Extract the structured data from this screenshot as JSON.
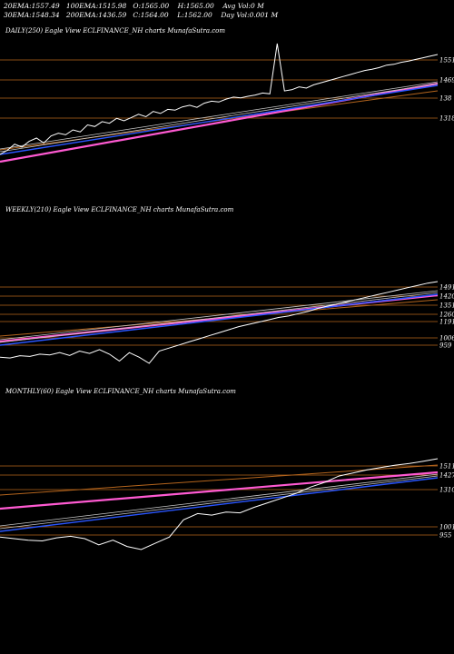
{
  "header": {
    "row1": [
      {
        "label": "20EMA:",
        "value": "1557.49"
      },
      {
        "label": "100EMA:",
        "value": "1515.98"
      },
      {
        "label": "O:",
        "value": "1565.00"
      },
      {
        "label": "H:",
        "value": "1565.00"
      },
      {
        "label": "Avg Vol:",
        "value": "0  M"
      }
    ],
    "row2": [
      {
        "label": "30EMA:",
        "value": "1548.34"
      },
      {
        "label": "200EMA:",
        "value": "1436.59"
      },
      {
        "label": "C:",
        "value": "1564.00"
      },
      {
        "label": "L:",
        "value": "1562.00"
      },
      {
        "label": "Day Vol:",
        "value": "0.001  M"
      }
    ]
  },
  "colors": {
    "background": "#000000",
    "price": "#ffffff",
    "ema_fast": "#2a56ff",
    "ema_mid": "#c8c8c8",
    "ema_slow": "#ff5ad2",
    "ema_long": "#b5651d",
    "level_line": "#b5651d"
  },
  "chart_data": [
    {
      "type": "line",
      "title": "DAILY(250) Eagle  View  ECLFINANCE_NH charts MunafaSutra.com",
      "levels": [
        "1551",
        "1469",
        "138",
        "1318"
      ],
      "price": [
        1320,
        1330,
        1345,
        1338,
        1352,
        1360,
        1348,
        1365,
        1372,
        1368,
        1380,
        1375,
        1392,
        1388,
        1400,
        1396,
        1408,
        1402,
        1410,
        1418,
        1412,
        1425,
        1420,
        1430,
        1428,
        1436,
        1440,
        1435,
        1445,
        1450,
        1448,
        1455,
        1460,
        1458,
        1462,
        1465,
        1470,
        1468,
        1700,
        1475,
        1478,
        1485,
        1482,
        1490,
        1495,
        1500,
        1505,
        1510,
        1515,
        1520,
        1525,
        1528,
        1532,
        1538,
        1540,
        1545,
        1548,
        1552,
        1556,
        1560,
        1564
      ]
    },
    {
      "type": "line",
      "title": "WEEKLY(210) Eagle  View  ECLFINANCE_NH charts MunafaSutra.com",
      "levels": [
        "1491",
        "1420",
        "1351",
        "1260",
        "1191",
        "1006",
        "959"
      ],
      "price": [
        1000,
        995,
        1010,
        1005,
        1020,
        1015,
        1030,
        1012,
        1040,
        1025,
        1050,
        1020,
        975,
        1030,
        1000,
        960,
        1040,
        1060,
        1080,
        1100,
        1120,
        1140,
        1160,
        1180,
        1200,
        1215,
        1230,
        1245,
        1260,
        1270,
        1285,
        1300,
        1320,
        1335,
        1350,
        1365,
        1380,
        1395,
        1410,
        1425,
        1440,
        1455,
        1470,
        1485,
        1495
      ]
    },
    {
      "type": "line",
      "title": "MONTHLY(60) Eagle  View  ECLFINANCE_NH charts MunafaSutra.com",
      "levels": [
        "1511",
        "1427",
        "1310",
        "1001",
        "955"
      ],
      "price": [
        1010,
        1000,
        990,
        985,
        1005,
        1015,
        1000,
        960,
        990,
        950,
        930,
        970,
        1010,
        1120,
        1160,
        1150,
        1170,
        1165,
        1200,
        1230,
        1260,
        1290,
        1330,
        1360,
        1400,
        1420,
        1440,
        1455,
        1470,
        1480,
        1495,
        1511
      ]
    }
  ]
}
